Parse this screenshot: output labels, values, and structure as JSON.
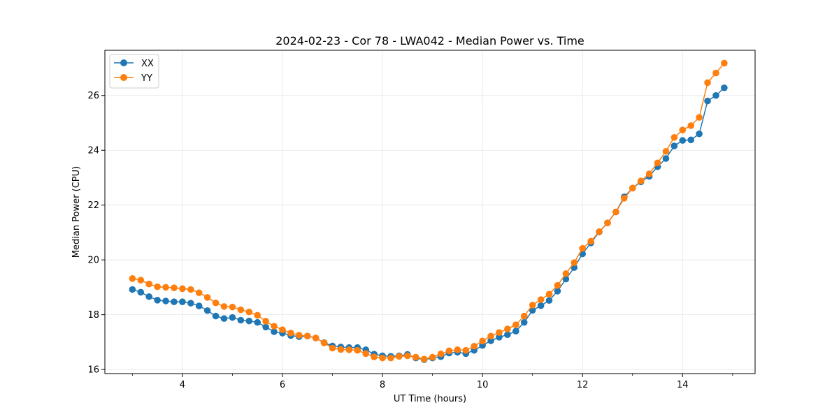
{
  "chart_data": {
    "type": "line",
    "title": "2024-02-23 - Cor 78 - LWA042 - Median Power vs. Time",
    "xlabel": "UT Time (hours)",
    "ylabel": "Median Power (CPU)",
    "xlim": [
      2.45,
      15.45
    ],
    "ylim": [
      15.85,
      27.65
    ],
    "xticks": [
      4,
      6,
      8,
      10,
      12,
      14
    ],
    "xtick_labels": [
      "4",
      "6",
      "8",
      "10",
      "12",
      "14"
    ],
    "yticks": [
      16,
      18,
      20,
      22,
      24,
      26
    ],
    "ytick_labels": [
      "16",
      "18",
      "20",
      "22",
      "24",
      "26"
    ],
    "grid": true,
    "legend_position": "top-left",
    "x": [
      3.0,
      3.167,
      3.333,
      3.5,
      3.667,
      3.833,
      4.0,
      4.167,
      4.333,
      4.5,
      4.667,
      4.833,
      5.0,
      5.167,
      5.333,
      5.5,
      5.667,
      5.833,
      6.0,
      6.167,
      6.333,
      6.5,
      6.667,
      6.833,
      7.0,
      7.167,
      7.333,
      7.5,
      7.667,
      7.833,
      8.0,
      8.167,
      8.333,
      8.5,
      8.667,
      8.833,
      9.0,
      9.167,
      9.333,
      9.5,
      9.667,
      9.833,
      10.0,
      10.167,
      10.333,
      10.5,
      10.667,
      10.833,
      11.0,
      11.167,
      11.333,
      11.5,
      11.667,
      11.833,
      12.0,
      12.167,
      12.333,
      12.5,
      12.667,
      12.833,
      13.0,
      13.167,
      13.333,
      13.5,
      13.667,
      13.833,
      14.0,
      14.167,
      14.333,
      14.5,
      14.667,
      14.833
    ],
    "series": [
      {
        "name": "XX",
        "color": "#1f77b4",
        "values": [
          18.92,
          18.82,
          18.66,
          18.53,
          18.5,
          18.47,
          18.47,
          18.42,
          18.32,
          18.15,
          17.95,
          17.86,
          17.9,
          17.8,
          17.77,
          17.72,
          17.55,
          17.38,
          17.33,
          17.24,
          17.2,
          17.22,
          17.15,
          16.98,
          16.86,
          16.82,
          16.8,
          16.8,
          16.72,
          16.56,
          16.5,
          16.48,
          16.5,
          16.55,
          16.42,
          16.36,
          16.42,
          16.47,
          16.6,
          16.63,
          16.58,
          16.7,
          16.88,
          17.05,
          17.18,
          17.27,
          17.4,
          17.72,
          18.16,
          18.33,
          18.52,
          18.86,
          19.3,
          19.72,
          20.22,
          20.62,
          21.02,
          21.35,
          21.75,
          22.3,
          22.62,
          22.85,
          23.05,
          23.4,
          23.7,
          24.16,
          24.36,
          24.38,
          24.6,
          25.8,
          26.0,
          26.28
        ]
      },
      {
        "name": "YY",
        "color": "#ff7f0e",
        "values": [
          19.32,
          19.26,
          19.12,
          19.02,
          19.0,
          18.98,
          18.95,
          18.92,
          18.8,
          18.63,
          18.43,
          18.3,
          18.28,
          18.18,
          18.1,
          17.98,
          17.76,
          17.58,
          17.45,
          17.33,
          17.25,
          17.22,
          17.15,
          16.97,
          16.78,
          16.73,
          16.72,
          16.7,
          16.58,
          16.46,
          16.42,
          16.42,
          16.48,
          16.5,
          16.45,
          16.38,
          16.45,
          16.57,
          16.68,
          16.72,
          16.7,
          16.85,
          17.04,
          17.22,
          17.35,
          17.48,
          17.63,
          17.95,
          18.35,
          18.55,
          18.75,
          19.07,
          19.5,
          19.9,
          20.42,
          20.68,
          21.03,
          21.35,
          21.75,
          22.25,
          22.62,
          22.88,
          23.14,
          23.54,
          23.96,
          24.47,
          24.74,
          24.9,
          25.2,
          26.47,
          26.82,
          27.18
        ]
      }
    ]
  }
}
